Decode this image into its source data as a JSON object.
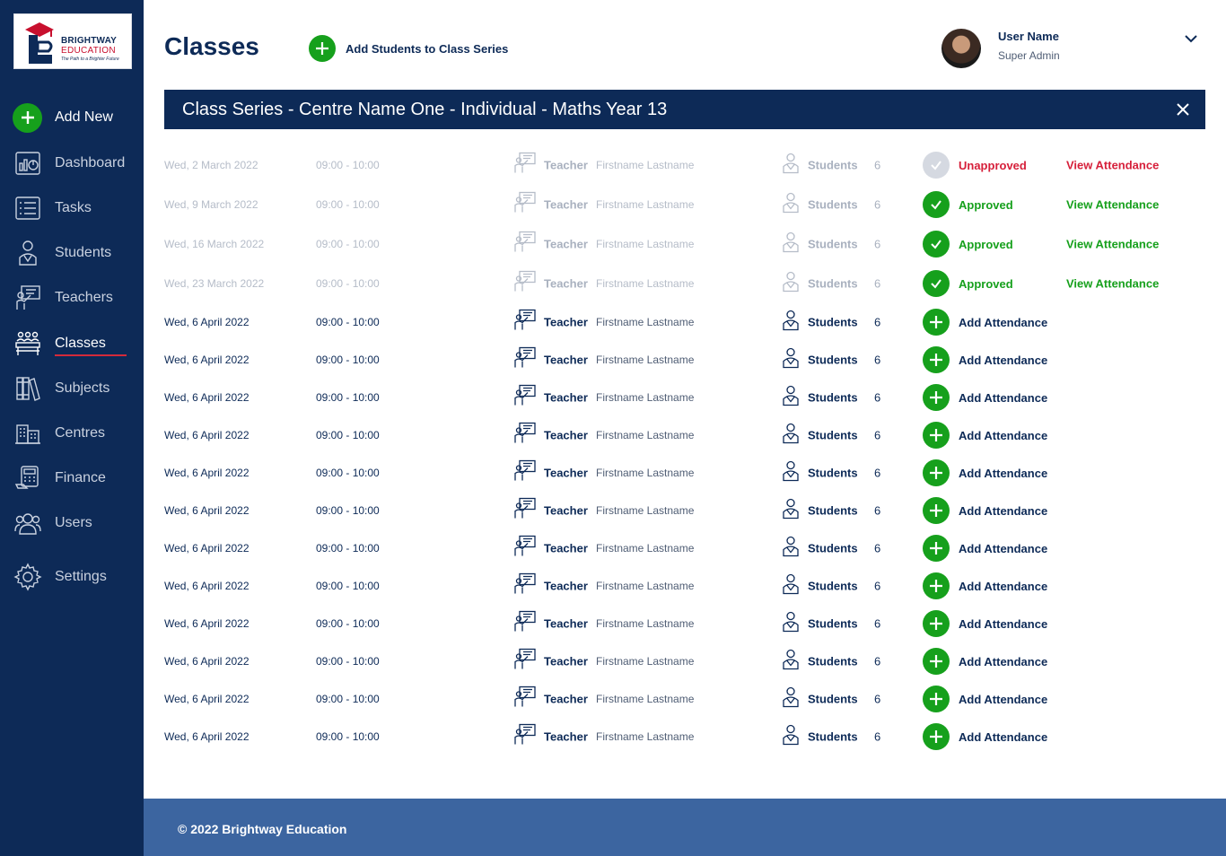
{
  "logo": {
    "line1": "BRIGHTWAY",
    "line2": "EDUCATION",
    "tagline": "The Path to a Brighter Future"
  },
  "sidebar": {
    "add_new_label": "Add New",
    "items": [
      {
        "label": "Dashboard",
        "icon": "dashboard-icon"
      },
      {
        "label": "Tasks",
        "icon": "tasks-icon"
      },
      {
        "label": "Students",
        "icon": "students-icon"
      },
      {
        "label": "Teachers",
        "icon": "teachers-icon"
      },
      {
        "label": "Classes",
        "icon": "classes-icon",
        "active": true
      },
      {
        "label": "Subjects",
        "icon": "subjects-icon"
      },
      {
        "label": "Centres",
        "icon": "centres-icon"
      },
      {
        "label": "Finance",
        "icon": "finance-icon"
      },
      {
        "label": "Users",
        "icon": "users-icon"
      },
      {
        "label": "Settings",
        "icon": "settings-icon"
      }
    ]
  },
  "header": {
    "title": "Classes",
    "add_students_label": "Add Students to Class Series",
    "user_name": "User Name",
    "user_role": "Super Admin"
  },
  "banner": {
    "title": "Class Series - Centre Name One - Individual - Maths Year 13"
  },
  "sessions": [
    {
      "date": "Wed, 2 March 2022",
      "time": "09:00 - 10:00",
      "teacher_label": "Teacher",
      "teacher_name": "Firstname Lastname",
      "students_label": "Students",
      "students_count": "6",
      "status": "Unapproved",
      "status_type": "unapproved",
      "action": "View Attendance",
      "past": true
    },
    {
      "date": "Wed, 9 March 2022",
      "time": "09:00 - 10:00",
      "teacher_label": "Teacher",
      "teacher_name": "Firstname Lastname",
      "students_label": "Students",
      "students_count": "6",
      "status": "Approved",
      "status_type": "approved",
      "action": "View Attendance",
      "past": true
    },
    {
      "date": "Wed, 16 March 2022",
      "time": "09:00 - 10:00",
      "teacher_label": "Teacher",
      "teacher_name": "Firstname Lastname",
      "students_label": "Students",
      "students_count": "6",
      "status": "Approved",
      "status_type": "approved",
      "action": "View Attendance",
      "past": true
    },
    {
      "date": "Wed, 23 March 2022",
      "time": "09:00 - 10:00",
      "teacher_label": "Teacher",
      "teacher_name": "Firstname Lastname",
      "students_label": "Students",
      "students_count": "6",
      "status": "Approved",
      "status_type": "approved",
      "action": "View Attendance",
      "past": true
    },
    {
      "date": "Wed, 6 April 2022",
      "time": "09:00 - 10:00",
      "teacher_label": "Teacher",
      "teacher_name": "Firstname Lastname",
      "students_label": "Students",
      "students_count": "6",
      "status": "Add Attendance",
      "status_type": "add",
      "action": "",
      "past": false
    },
    {
      "date": "Wed, 6 April 2022",
      "time": "09:00 - 10:00",
      "teacher_label": "Teacher",
      "teacher_name": "Firstname Lastname",
      "students_label": "Students",
      "students_count": "6",
      "status": "Add Attendance",
      "status_type": "add",
      "action": "",
      "past": false
    },
    {
      "date": "Wed, 6 April 2022",
      "time": "09:00 - 10:00",
      "teacher_label": "Teacher",
      "teacher_name": "Firstname Lastname",
      "students_label": "Students",
      "students_count": "6",
      "status": "Add Attendance",
      "status_type": "add",
      "action": "",
      "past": false
    },
    {
      "date": "Wed, 6 April 2022",
      "time": "09:00 - 10:00",
      "teacher_label": "Teacher",
      "teacher_name": "Firstname Lastname",
      "students_label": "Students",
      "students_count": "6",
      "status": "Add Attendance",
      "status_type": "add",
      "action": "",
      "past": false
    },
    {
      "date": "Wed, 6 April 2022",
      "time": "09:00 - 10:00",
      "teacher_label": "Teacher",
      "teacher_name": "Firstname Lastname",
      "students_label": "Students",
      "students_count": "6",
      "status": "Add Attendance",
      "status_type": "add",
      "action": "",
      "past": false
    },
    {
      "date": "Wed, 6 April 2022",
      "time": "09:00 - 10:00",
      "teacher_label": "Teacher",
      "teacher_name": "Firstname Lastname",
      "students_label": "Students",
      "students_count": "6",
      "status": "Add Attendance",
      "status_type": "add",
      "action": "",
      "past": false
    },
    {
      "date": "Wed, 6 April 2022",
      "time": "09:00 - 10:00",
      "teacher_label": "Teacher",
      "teacher_name": "Firstname Lastname",
      "students_label": "Students",
      "students_count": "6",
      "status": "Add Attendance",
      "status_type": "add",
      "action": "",
      "past": false
    },
    {
      "date": "Wed, 6 April 2022",
      "time": "09:00 - 10:00",
      "teacher_label": "Teacher",
      "teacher_name": "Firstname Lastname",
      "students_label": "Students",
      "students_count": "6",
      "status": "Add Attendance",
      "status_type": "add",
      "action": "",
      "past": false
    },
    {
      "date": "Wed, 6 April 2022",
      "time": "09:00 - 10:00",
      "teacher_label": "Teacher",
      "teacher_name": "Firstname Lastname",
      "students_label": "Students",
      "students_count": "6",
      "status": "Add Attendance",
      "status_type": "add",
      "action": "",
      "past": false
    },
    {
      "date": "Wed, 6 April 2022",
      "time": "09:00 - 10:00",
      "teacher_label": "Teacher",
      "teacher_name": "Firstname Lastname",
      "students_label": "Students",
      "students_count": "6",
      "status": "Add Attendance",
      "status_type": "add",
      "action": "",
      "past": false
    },
    {
      "date": "Wed, 6 April 2022",
      "time": "09:00 - 10:00",
      "teacher_label": "Teacher",
      "teacher_name": "Firstname Lastname",
      "students_label": "Students",
      "students_count": "6",
      "status": "Add Attendance",
      "status_type": "add",
      "action": "",
      "past": false
    },
    {
      "date": "Wed, 6 April 2022",
      "time": "09:00 - 10:00",
      "teacher_label": "Teacher",
      "teacher_name": "Firstname Lastname",
      "students_label": "Students",
      "students_count": "6",
      "status": "Add Attendance",
      "status_type": "add",
      "action": "",
      "past": false
    }
  ],
  "footer": {
    "text": "© 2022 Brightway Education"
  },
  "colors": {
    "navy": "#0d2a57",
    "green": "#16a01c",
    "red": "#d61f3a",
    "footer_blue": "#3c65a0"
  }
}
